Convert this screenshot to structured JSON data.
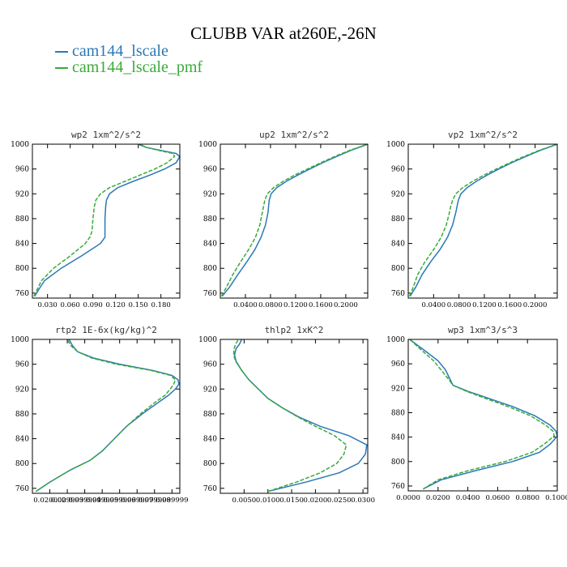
{
  "figure": {
    "title": "CLUBB VAR at260E,-26N",
    "legend": [
      {
        "label": "cam144_lscale",
        "color": "#2a78b8"
      },
      {
        "label": "cam144_lscale_pmf",
        "color": "#3aaa3a"
      }
    ]
  },
  "chart_data": [
    {
      "type": "line",
      "title": "wp2   1xm^2/s^2",
      "xlim": [
        0.01,
        0.205
      ],
      "ylim": [
        1000,
        752
      ],
      "yticks": [
        760,
        800,
        840,
        880,
        920,
        960,
        1000
      ],
      "xticks": [
        0.03,
        0.06,
        0.09,
        0.12,
        0.15,
        0.18
      ],
      "xticklabels": [
        "0.030",
        "0.060",
        "0.090",
        "0.120",
        "0.150",
        "0.180"
      ],
      "y": [
        755,
        765,
        780,
        800,
        820,
        840,
        850,
        860,
        880,
        900,
        910,
        920,
        930,
        940,
        950,
        960,
        970,
        980,
        985,
        990,
        995,
        1000
      ],
      "series": [
        {
          "name": "cam144_lscale",
          "x": [
            0.013,
            0.018,
            0.026,
            0.048,
            0.075,
            0.1,
            0.106,
            0.106,
            0.106,
            0.107,
            0.108,
            0.112,
            0.123,
            0.143,
            0.165,
            0.185,
            0.2,
            0.205,
            0.2,
            0.18,
            0.16,
            0.15
          ]
        },
        {
          "name": "cam144_lscale_pmf",
          "x": [
            0.012,
            0.016,
            0.022,
            0.038,
            0.06,
            0.08,
            0.086,
            0.089,
            0.09,
            0.092,
            0.094,
            0.1,
            0.112,
            0.132,
            0.152,
            0.172,
            0.188,
            0.198,
            0.196,
            0.177,
            0.16,
            0.152
          ]
        }
      ]
    },
    {
      "type": "line",
      "title": "up2   1xm^2/s^2",
      "xlim": [
        0.0,
        0.235
      ],
      "ylim": [
        1000,
        752
      ],
      "yticks": [
        760,
        800,
        840,
        880,
        920,
        960,
        1000
      ],
      "xticks": [
        0.04,
        0.08,
        0.12,
        0.16,
        0.2
      ],
      "xticklabels": [
        "0.0400",
        "0.0800",
        "0.1200",
        "0.1600",
        "0.2000"
      ],
      "y": [
        755,
        770,
        790,
        810,
        830,
        850,
        870,
        890,
        900,
        910,
        920,
        930,
        940,
        950,
        960,
        970,
        980,
        990,
        1000
      ],
      "series": [
        {
          "name": "cam144_lscale",
          "x": [
            0.003,
            0.015,
            0.028,
            0.042,
            0.055,
            0.065,
            0.072,
            0.076,
            0.077,
            0.078,
            0.081,
            0.09,
            0.105,
            0.123,
            0.143,
            0.163,
            0.185,
            0.208,
            0.235
          ]
        },
        {
          "name": "cam144_lscale_pmf",
          "x": [
            0.002,
            0.01,
            0.02,
            0.032,
            0.045,
            0.056,
            0.063,
            0.067,
            0.069,
            0.071,
            0.075,
            0.085,
            0.1,
            0.118,
            0.139,
            0.16,
            0.182,
            0.206,
            0.235
          ]
        }
      ]
    },
    {
      "type": "line",
      "title": "vp2   1xm^2/s^2",
      "xlim": [
        0.0,
        0.235
      ],
      "ylim": [
        1000,
        752
      ],
      "yticks": [
        760,
        800,
        840,
        880,
        920,
        960,
        1000
      ],
      "xticks": [
        0.04,
        0.08,
        0.12,
        0.16,
        0.2
      ],
      "xticklabels": [
        "0.0400",
        "0.0800",
        "0.1200",
        "0.1600",
        "0.2000"
      ],
      "y": [
        755,
        770,
        790,
        810,
        830,
        850,
        870,
        890,
        900,
        910,
        920,
        930,
        940,
        950,
        960,
        970,
        980,
        990,
        1000
      ],
      "series": [
        {
          "name": "cam144_lscale",
          "x": [
            0.003,
            0.012,
            0.022,
            0.035,
            0.05,
            0.062,
            0.07,
            0.075,
            0.077,
            0.079,
            0.083,
            0.093,
            0.107,
            0.124,
            0.143,
            0.163,
            0.185,
            0.208,
            0.235
          ]
        },
        {
          "name": "cam144_lscale_pmf",
          "x": [
            0.002,
            0.008,
            0.015,
            0.026,
            0.04,
            0.052,
            0.06,
            0.065,
            0.067,
            0.07,
            0.075,
            0.086,
            0.101,
            0.119,
            0.139,
            0.16,
            0.182,
            0.206,
            0.235
          ]
        }
      ]
    },
    {
      "type": "line",
      "title": "rtp2   1E-6x(kg/kg)^2",
      "xlim": [
        0.01,
        0.0945
      ],
      "ylim": [
        1000,
        752
      ],
      "yticks": [
        760,
        800,
        840,
        880,
        920,
        960,
        1000
      ],
      "xticks": [
        0.02,
        0.03,
        0.04,
        0.05,
        0.06,
        0.07,
        0.08,
        0.09
      ],
      "xticklabels": [
        "0.020000",
        "0.029999",
        "0.039999",
        "0.049999",
        "0.059999",
        "0.069999",
        "0.079999",
        "0.089999"
      ],
      "y": [
        755,
        770,
        790,
        805,
        820,
        840,
        860,
        880,
        900,
        910,
        920,
        928,
        935,
        942,
        950,
        960,
        970,
        980,
        990,
        1000
      ],
      "series": [
        {
          "name": "cam144_lscale",
          "x": [
            0.012,
            0.02,
            0.032,
            0.043,
            0.05,
            0.057,
            0.064,
            0.073,
            0.083,
            0.088,
            0.092,
            0.094,
            0.0935,
            0.09,
            0.079,
            0.06,
            0.045,
            0.036,
            0.033,
            0.031
          ]
        },
        {
          "name": "cam144_lscale_pmf",
          "x": [
            0.012,
            0.02,
            0.032,
            0.043,
            0.05,
            0.057,
            0.064,
            0.072,
            0.081,
            0.086,
            0.089,
            0.091,
            0.092,
            0.089,
            0.078,
            0.058,
            0.044,
            0.036,
            0.032,
            0.03
          ]
        }
      ]
    },
    {
      "type": "line",
      "title": "thlp2   1xK^2",
      "xlim": [
        0.0,
        0.031
      ],
      "ylim": [
        1000,
        752
      ],
      "yticks": [
        760,
        800,
        840,
        880,
        920,
        960,
        1000
      ],
      "xticks": [
        0.005,
        0.01,
        0.015,
        0.02,
        0.025,
        0.03
      ],
      "xticklabels": [
        "0.0050",
        "0.0100",
        "0.0150",
        "0.0200",
        "0.0250",
        "0.0300"
      ],
      "y": [
        755,
        770,
        785,
        800,
        815,
        830,
        845,
        860,
        875,
        890,
        905,
        920,
        935,
        950,
        965,
        975,
        985,
        992,
        1000
      ],
      "series": [
        {
          "name": "cam144_lscale",
          "x": [
            0.01,
            0.018,
            0.025,
            0.029,
            0.0305,
            0.0308,
            0.027,
            0.021,
            0.0165,
            0.013,
            0.01,
            0.008,
            0.006,
            0.0045,
            0.0033,
            0.003,
            0.0033,
            0.004,
            0.0045
          ]
        },
        {
          "name": "cam144_lscale_pmf",
          "x": [
            0.01,
            0.016,
            0.021,
            0.0245,
            0.026,
            0.0265,
            0.024,
            0.02,
            0.0163,
            0.013,
            0.01,
            0.008,
            0.006,
            0.0045,
            0.0032,
            0.0028,
            0.0029,
            0.0032,
            0.0038
          ]
        }
      ]
    },
    {
      "type": "line",
      "title": "wp3   1xm^3/s^3",
      "xlim": [
        0.0,
        0.1
      ],
      "ylim": [
        1000,
        752
      ],
      "yticks": [
        760,
        800,
        840,
        880,
        920,
        960,
        1000
      ],
      "xticks": [
        0.0,
        0.02,
        0.04,
        0.06,
        0.08,
        0.1
      ],
      "xticklabels": [
        "0.0000",
        "0.0200",
        "0.0400",
        "0.0600",
        "0.0800",
        "0.1000"
      ],
      "y": [
        755,
        770,
        785,
        800,
        815,
        828,
        836,
        842,
        850,
        860,
        875,
        890,
        905,
        915,
        925,
        935,
        950,
        965,
        980,
        1000
      ],
      "series": [
        {
          "name": "cam144_lscale",
          "x": [
            0.01,
            0.022,
            0.045,
            0.07,
            0.088,
            0.095,
            0.098,
            0.1,
            0.099,
            0.095,
            0.085,
            0.07,
            0.052,
            0.04,
            0.03,
            0.028,
            0.025,
            0.02,
            0.012,
            0.001
          ]
        },
        {
          "name": "cam144_lscale_pmf",
          "x": [
            0.01,
            0.02,
            0.04,
            0.065,
            0.083,
            0.091,
            0.095,
            0.098,
            0.097,
            0.092,
            0.082,
            0.067,
            0.05,
            0.039,
            0.03,
            0.027,
            0.022,
            0.017,
            0.01,
            0.001
          ]
        }
      ]
    }
  ]
}
